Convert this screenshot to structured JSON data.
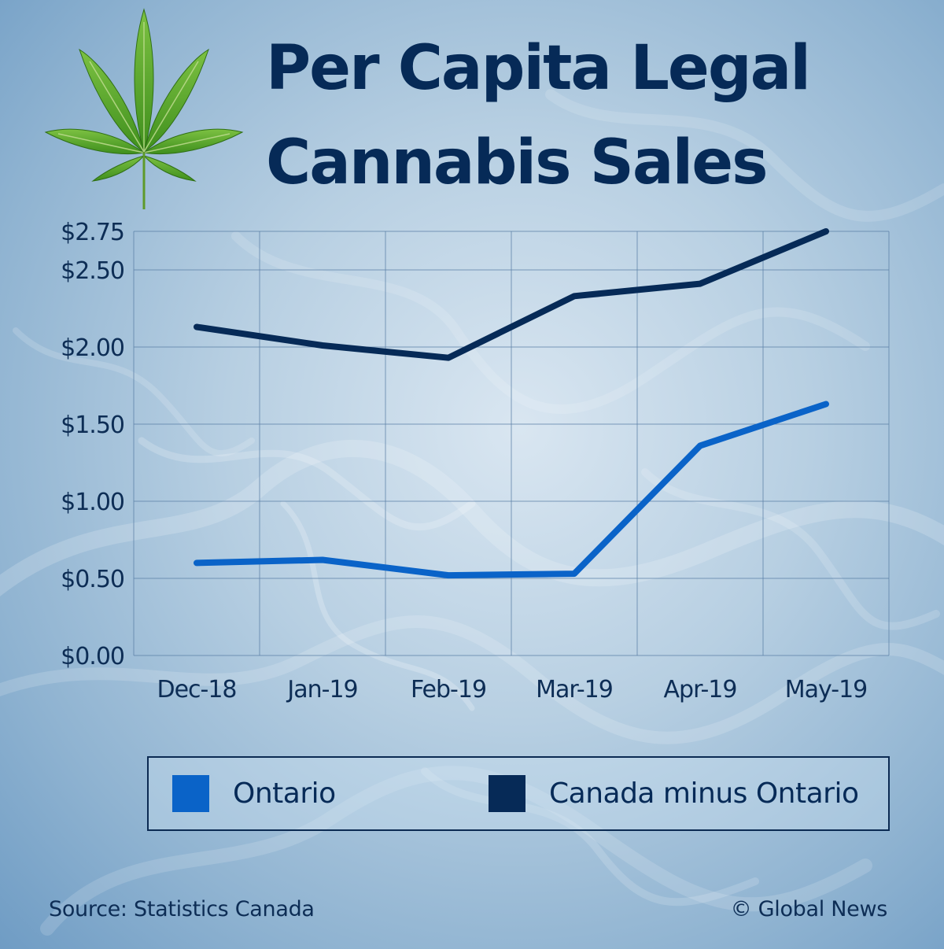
{
  "title_lines": [
    "Per Capita Legal",
    "Cannabis Sales"
  ],
  "source": "Source: Statistics Canada",
  "credit": "© Global News",
  "colors": {
    "ontario": "#0a63c8",
    "canada_minus_ontario": "#062a57",
    "title": "#062a57",
    "grid": "#5a7fa6"
  },
  "icons": [
    "cannabis-leaf-icon"
  ],
  "chart_data": {
    "type": "line",
    "title": "Per Capita Legal Cannabis Sales",
    "xlabel": "",
    "ylabel": "",
    "categories": [
      "Dec-18",
      "Jan-19",
      "Feb-19",
      "Mar-19",
      "Apr-19",
      "May-19"
    ],
    "x_positions": [
      0.5,
      1.5,
      2.5,
      3.5,
      4.5,
      5.5
    ],
    "y_ticks": [
      "$0.00",
      "$0.50",
      "$1.00",
      "$1.50",
      "$2.00",
      "$2.50",
      "$2.75"
    ],
    "y_tick_values": [
      0,
      0.5,
      1.0,
      1.5,
      2.0,
      2.5,
      2.75
    ],
    "ylim": [
      0,
      2.75
    ],
    "grid": true,
    "legend_position": "bottom",
    "series": [
      {
        "name": "Ontario",
        "color": "#0a63c8",
        "points": [
          [
            0.5,
            0.6
          ],
          [
            1.5,
            0.62
          ],
          [
            2.5,
            0.52
          ],
          [
            3.5,
            0.53
          ],
          [
            4.5,
            1.36
          ],
          [
            5.5,
            1.63
          ]
        ]
      },
      {
        "name": "Canada minus Ontario",
        "color": "#062a57",
        "points": [
          [
            0.5,
            2.13
          ],
          [
            1.5,
            2.01
          ],
          [
            2.5,
            1.93
          ],
          [
            3.5,
            2.33
          ],
          [
            4.5,
            2.41
          ],
          [
            5.5,
            2.75
          ]
        ]
      }
    ]
  }
}
